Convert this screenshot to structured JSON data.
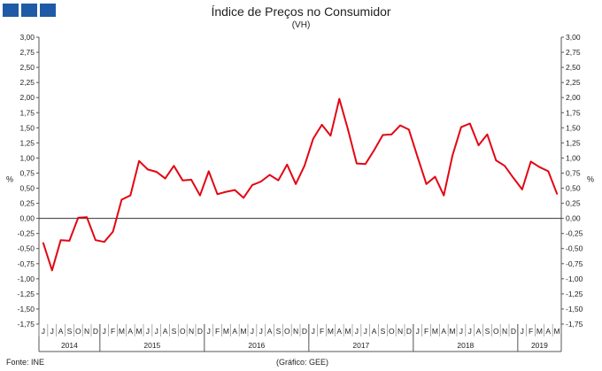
{
  "header": {
    "logo_colors": [
      "#1f5aa6",
      "#1f5aa6",
      "#1f5aa6"
    ]
  },
  "footer": {
    "source": "Fonte: INE",
    "credit": "(Gráfico: GEE)"
  },
  "chart_data": {
    "type": "line",
    "title": "Índice de Preços no Consumidor",
    "subtitle": "(VH)",
    "ylabel_left": "%",
    "ylabel_right": "%",
    "ylim": [
      -1.75,
      3.0
    ],
    "ytick_step": 0.25,
    "yticks": [
      "3,00",
      "2,75",
      "2,50",
      "2,25",
      "2,00",
      "1,75",
      "1,50",
      "1,25",
      "1,00",
      "0,75",
      "0,50",
      "0,25",
      "0,00",
      "-0,25",
      "-0,50",
      "-0,75",
      "-1,00",
      "-1,25",
      "-1,50",
      "-1,75"
    ],
    "month_labels": [
      "J",
      "J",
      "A",
      "S",
      "O",
      "N",
      "D",
      "J",
      "F",
      "M",
      "A",
      "M",
      "J",
      "J",
      "A",
      "S",
      "O",
      "N",
      "D",
      "J",
      "F",
      "M",
      "A",
      "M",
      "J",
      "J",
      "A",
      "S",
      "O",
      "N",
      "D",
      "J",
      "F",
      "M",
      "A",
      "M",
      "J",
      "J",
      "A",
      "S",
      "O",
      "N",
      "D",
      "J",
      "F",
      "M",
      "A",
      "M",
      "J",
      "J",
      "A",
      "S",
      "O",
      "N",
      "D",
      "J",
      "F",
      "M",
      "A",
      "M"
    ],
    "years": [
      {
        "label": "2014",
        "start": 0,
        "count": 7
      },
      {
        "label": "2015",
        "start": 7,
        "count": 12
      },
      {
        "label": "2016",
        "start": 19,
        "count": 12
      },
      {
        "label": "2017",
        "start": 31,
        "count": 12
      },
      {
        "label": "2018",
        "start": 43,
        "count": 12
      },
      {
        "label": "2019",
        "start": 55,
        "count": 5
      }
    ],
    "line_color": "#e30613",
    "grid": false,
    "legend": "none",
    "series": [
      {
        "values": [
          -0.41,
          -0.86,
          -0.36,
          -0.37,
          0.01,
          0.02,
          -0.36,
          -0.39,
          -0.22,
          0.31,
          0.38,
          0.95,
          0.81,
          0.77,
          0.66,
          0.87,
          0.63,
          0.64,
          0.38,
          0.78,
          0.4,
          0.44,
          0.47,
          0.34,
          0.55,
          0.61,
          0.72,
          0.63,
          0.89,
          0.57,
          0.87,
          1.32,
          1.55,
          1.37,
          1.98,
          1.47,
          0.91,
          0.9,
          1.13,
          1.38,
          1.39,
          1.54,
          1.47,
          1.01,
          0.57,
          0.69,
          0.38,
          1.04,
          1.51,
          1.57,
          1.21,
          1.39,
          0.96,
          0.87,
          0.67,
          0.48,
          0.94,
          0.85,
          0.78,
          0.41
        ]
      }
    ]
  }
}
